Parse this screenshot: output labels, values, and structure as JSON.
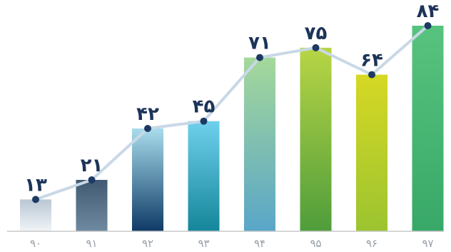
{
  "chart_data": {
    "type": "bar",
    "title": "",
    "xlabel": "",
    "ylabel": "",
    "categories": [
      "۹۰",
      "۹۱",
      "۹۲",
      "۹۳",
      "۹۴",
      "۹۵",
      "۹۶",
      "۹۷"
    ],
    "values": [
      13,
      21,
      42,
      45,
      71,
      75,
      64,
      84
    ],
    "value_labels": [
      "۱۳",
      "۲۱",
      "۴۲",
      "۴۵",
      "۷۱",
      "۷۵",
      "۶۴",
      "۸۴"
    ],
    "ylim": [
      0,
      84
    ],
    "grid": false,
    "legend": "none",
    "overlay_line": true,
    "colors": {
      "line": "#c9d8e6",
      "marker": "#1c3a63",
      "label": "#1c3458",
      "axis": "#c8c8c8",
      "tick": "#9aa0a6",
      "bars": [
        [
          "#b9c7d4",
          "#f1f4f7"
        ],
        [
          "#3f5a72",
          "#6f8aa0"
        ],
        [
          "#a8dcec",
          "#0e3a66"
        ],
        [
          "#6fd0ec",
          "#14869a"
        ],
        [
          "#a5d89a",
          "#59a6c8"
        ],
        [
          "#b8d545",
          "#4f9d3b"
        ],
        [
          "#d6d824",
          "#9cc430"
        ],
        [
          "#58c37e",
          "#38a868"
        ]
      ]
    }
  }
}
